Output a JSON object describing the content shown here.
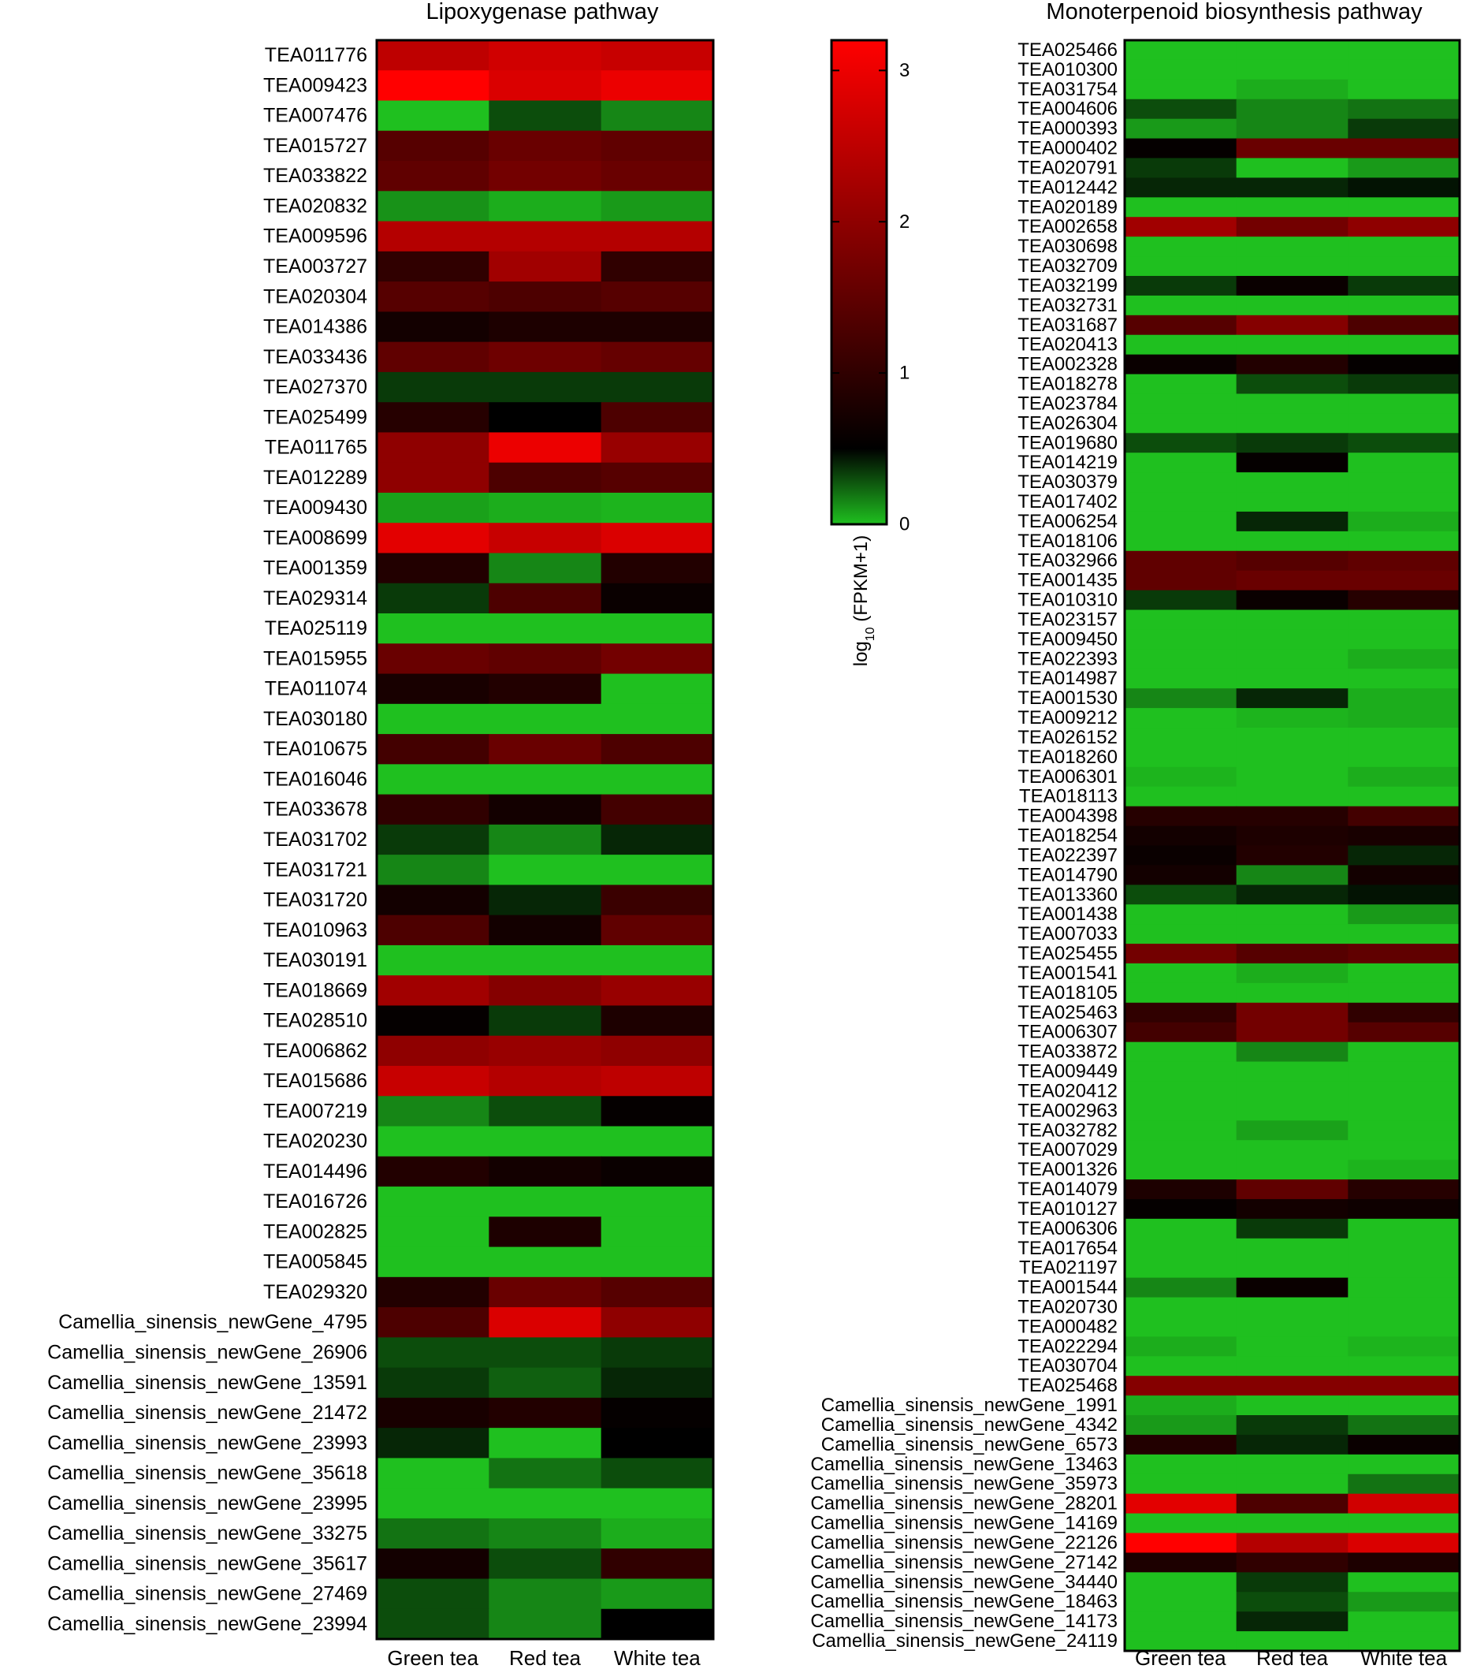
{
  "chart_data": {
    "type": "heatmap",
    "color_scale": {
      "label_main": "log",
      "label_sub": "10",
      "label_rest": " (FPKM+1)",
      "range": [
        0,
        3.2
      ],
      "ticks": [
        0,
        1,
        2,
        3
      ],
      "stops": [
        {
          "v": 0.0,
          "color": "#1fc01f"
        },
        {
          "v": 0.5,
          "color": "#000000"
        },
        {
          "v": 1.5,
          "color": "#600000"
        },
        {
          "v": 3.2,
          "color": "#ff0000"
        }
      ]
    },
    "panels": [
      {
        "title": "Lipoxygenase pathway",
        "columns": [
          "Green tea",
          "Red tea",
          "White tea"
        ],
        "rows": [
          "TEA011776",
          "TEA009423",
          "TEA007476",
          "TEA015727",
          "TEA033822",
          "TEA020832",
          "TEA009596",
          "TEA003727",
          "TEA020304",
          "TEA014386",
          "TEA033436",
          "TEA027370",
          "TEA025499",
          "TEA011765",
          "TEA012289",
          "TEA009430",
          "TEA008699",
          "TEA001359",
          "TEA029314",
          "TEA025119",
          "TEA015955",
          "TEA011074",
          "TEA030180",
          "TEA010675",
          "TEA016046",
          "TEA033678",
          "TEA031702",
          "TEA031721",
          "TEA031720",
          "TEA010963",
          "TEA030191",
          "TEA018669",
          "TEA028510",
          "TEA006862",
          "TEA015686",
          "TEA007219",
          "TEA020230",
          "TEA014496",
          "TEA016726",
          "TEA002825",
          "TEA005845",
          "TEA029320",
          "Camellia_sinensis_newGene_4795",
          "Camellia_sinensis_newGene_26906",
          "Camellia_sinensis_newGene_13591",
          "Camellia_sinensis_newGene_21472",
          "Camellia_sinensis_newGene_23993",
          "Camellia_sinensis_newGene_35618",
          "Camellia_sinensis_newGene_23995",
          "Camellia_sinensis_newGene_33275",
          "Camellia_sinensis_newGene_35617",
          "Camellia_sinensis_newGene_27469",
          "Camellia_sinensis_newGene_23994"
        ],
        "values": [
          [
            2.5,
            2.7,
            2.6
          ],
          [
            3.2,
            2.8,
            3.0
          ],
          [
            0.0,
            0.3,
            0.15
          ],
          [
            1.4,
            1.6,
            1.5
          ],
          [
            1.5,
            1.7,
            1.6
          ],
          [
            0.12,
            0.05,
            0.1
          ],
          [
            2.4,
            2.4,
            2.4
          ],
          [
            1.0,
            2.2,
            1.0
          ],
          [
            1.4,
            1.3,
            1.4
          ],
          [
            0.7,
            0.8,
            0.8
          ],
          [
            1.5,
            1.65,
            1.55
          ],
          [
            0.35,
            0.35,
            0.35
          ],
          [
            0.9,
            0.5,
            1.3
          ],
          [
            2.0,
            3.0,
            2.1
          ],
          [
            2.0,
            1.3,
            1.4
          ],
          [
            0.08,
            0.05,
            0.03
          ],
          [
            2.9,
            2.6,
            2.8
          ],
          [
            0.85,
            0.15,
            0.85
          ],
          [
            0.35,
            1.3,
            0.6
          ],
          [
            0.0,
            0.0,
            0.0
          ],
          [
            1.6,
            1.5,
            1.7
          ],
          [
            0.75,
            0.85,
            0.0
          ],
          [
            0.0,
            0.0,
            0.0
          ],
          [
            1.2,
            1.6,
            1.3
          ],
          [
            0.0,
            0.0,
            0.0
          ],
          [
            1.0,
            0.7,
            1.2
          ],
          [
            0.35,
            0.15,
            0.4
          ],
          [
            0.15,
            0.0,
            0.0
          ],
          [
            0.7,
            0.4,
            1.1
          ],
          [
            1.3,
            0.7,
            1.5
          ],
          [
            0.0,
            0.0,
            0.0
          ],
          [
            2.2,
            1.9,
            2.1
          ],
          [
            0.55,
            0.35,
            0.8
          ],
          [
            2.0,
            2.1,
            2.0
          ],
          [
            2.6,
            2.4,
            2.5
          ],
          [
            0.15,
            0.3,
            0.55
          ],
          [
            0.0,
            0.0,
            0.0
          ],
          [
            0.85,
            0.7,
            0.6
          ],
          [
            0.0,
            0.0,
            0.0
          ],
          [
            0.0,
            0.8,
            0.0
          ],
          [
            0.0,
            0.0,
            0.0
          ],
          [
            0.85,
            1.6,
            1.4
          ],
          [
            1.3,
            2.8,
            2.0
          ],
          [
            0.3,
            0.3,
            0.35
          ],
          [
            0.35,
            0.25,
            0.4
          ],
          [
            0.75,
            0.85,
            0.55
          ],
          [
            0.4,
            0.0,
            0.5
          ],
          [
            0.0,
            0.2,
            0.3
          ],
          [
            0.0,
            0.0,
            0.0
          ],
          [
            0.2,
            0.15,
            0.05
          ],
          [
            0.7,
            0.3,
            1.0
          ],
          [
            0.3,
            0.15,
            0.1
          ],
          [
            0.3,
            0.15,
            0.5
          ]
        ]
      },
      {
        "title": "Monoterpenoid biosynthesis pathway",
        "columns": [
          "Green tea",
          "Red tea",
          "White tea"
        ],
        "rows": [
          "TEA025466",
          "TEA010300",
          "TEA031754",
          "TEA004606",
          "TEA000393",
          "TEA000402",
          "TEA020791",
          "TEA012442",
          "TEA020189",
          "TEA002658",
          "TEA030698",
          "TEA032709",
          "TEA032199",
          "TEA032731",
          "TEA031687",
          "TEA020413",
          "TEA002328",
          "TEA018278",
          "TEA023784",
          "TEA026304",
          "TEA019680",
          "TEA014219",
          "TEA030379",
          "TEA017402",
          "TEA006254",
          "TEA018106",
          "TEA032966",
          "TEA001435",
          "TEA010310",
          "TEA023157",
          "TEA009450",
          "TEA022393",
          "TEA014987",
          "TEA001530",
          "TEA009212",
          "TEA026152",
          "TEA018260",
          "TEA006301",
          "TEA018113",
          "TEA004398",
          "TEA018254",
          "TEA022397",
          "TEA014790",
          "TEA013360",
          "TEA001438",
          "TEA007033",
          "TEA025455",
          "TEA001541",
          "TEA018105",
          "TEA025463",
          "TEA006307",
          "TEA033872",
          "TEA009449",
          "TEA020412",
          "TEA002963",
          "TEA032782",
          "TEA007029",
          "TEA001326",
          "TEA014079",
          "TEA010127",
          "TEA006306",
          "TEA017654",
          "TEA021197",
          "TEA001544",
          "TEA020730",
          "TEA000482",
          "TEA022294",
          "TEA030704",
          "TEA025468",
          "Camellia_sinensis_newGene_1991",
          "Camellia_sinensis_newGene_4342",
          "Camellia_sinensis_newGene_6573",
          "Camellia_sinensis_newGene_13463",
          "Camellia_sinensis_newGene_35973",
          "Camellia_sinensis_newGene_28201",
          "Camellia_sinensis_newGene_14169",
          "Camellia_sinensis_newGene_22126",
          "Camellia_sinensis_newGene_27142",
          "Camellia_sinensis_newGene_34440",
          "Camellia_sinensis_newGene_18463",
          "Camellia_sinensis_newGene_14173",
          "Camellia_sinensis_newGene_24119"
        ],
        "values": [
          [
            0.0,
            0.0,
            0.0
          ],
          [
            0.0,
            0.0,
            0.0
          ],
          [
            0.0,
            0.05,
            0.0
          ],
          [
            0.3,
            0.15,
            0.2
          ],
          [
            0.1,
            0.15,
            0.35
          ],
          [
            0.55,
            1.6,
            1.6
          ],
          [
            0.35,
            0.0,
            0.1
          ],
          [
            0.4,
            0.4,
            0.45
          ],
          [
            0.0,
            0.0,
            0.0
          ],
          [
            2.2,
            1.7,
            2.0
          ],
          [
            0.0,
            0.0,
            0.0
          ],
          [
            0.0,
            0.0,
            0.0
          ],
          [
            0.35,
            0.6,
            0.35
          ],
          [
            0.0,
            0.0,
            0.0
          ],
          [
            1.4,
            1.9,
            1.3
          ],
          [
            0.0,
            0.0,
            0.0
          ],
          [
            0.6,
            0.85,
            0.55
          ],
          [
            0.0,
            0.3,
            0.35
          ],
          [
            0.0,
            0.0,
            0.0
          ],
          [
            0.0,
            0.0,
            0.0
          ],
          [
            0.3,
            0.35,
            0.3
          ],
          [
            0.0,
            0.55,
            0.0
          ],
          [
            0.0,
            0.0,
            0.0
          ],
          [
            0.0,
            0.0,
            0.0
          ],
          [
            0.0,
            0.4,
            0.05
          ],
          [
            0.0,
            0.0,
            0.0
          ],
          [
            1.5,
            1.4,
            1.5
          ],
          [
            1.5,
            1.6,
            1.6
          ],
          [
            0.35,
            0.6,
            0.9
          ],
          [
            0.0,
            0.0,
            0.0
          ],
          [
            0.0,
            0.0,
            0.0
          ],
          [
            0.0,
            0.0,
            0.05
          ],
          [
            0.0,
            0.0,
            0.0
          ],
          [
            0.15,
            0.4,
            0.05
          ],
          [
            0.0,
            0.03,
            0.05
          ],
          [
            0.0,
            0.0,
            0.0
          ],
          [
            0.0,
            0.0,
            0.0
          ],
          [
            0.03,
            0.0,
            0.05
          ],
          [
            0.0,
            0.0,
            0.0
          ],
          [
            0.9,
            0.9,
            1.2
          ],
          [
            0.7,
            0.8,
            0.75
          ],
          [
            0.6,
            0.85,
            0.4
          ],
          [
            0.7,
            0.15,
            0.7
          ],
          [
            0.3,
            0.4,
            0.45
          ],
          [
            0.0,
            0.0,
            0.1
          ],
          [
            0.0,
            0.0,
            0.0
          ],
          [
            1.7,
            1.4,
            1.5
          ],
          [
            0.0,
            0.05,
            0.0
          ],
          [
            0.0,
            0.0,
            0.0
          ],
          [
            1.0,
            1.7,
            1.0
          ],
          [
            1.2,
            1.7,
            1.4
          ],
          [
            0.0,
            0.15,
            0.0
          ],
          [
            0.0,
            0.0,
            0.0
          ],
          [
            0.0,
            0.0,
            0.0
          ],
          [
            0.0,
            0.0,
            0.0
          ],
          [
            0.0,
            0.08,
            0.0
          ],
          [
            0.0,
            0.0,
            0.0
          ],
          [
            0.0,
            0.0,
            0.03
          ],
          [
            0.8,
            1.5,
            0.9
          ],
          [
            0.55,
            0.7,
            0.65
          ],
          [
            0.0,
            0.35,
            0.0
          ],
          [
            0.0,
            0.0,
            0.0
          ],
          [
            0.0,
            0.0,
            0.0
          ],
          [
            0.15,
            0.6,
            0.0
          ],
          [
            0.0,
            0.0,
            0.0
          ],
          [
            0.0,
            0.0,
            0.0
          ],
          [
            0.05,
            0.0,
            0.03
          ],
          [
            0.0,
            0.0,
            0.0
          ],
          [
            1.9,
            1.9,
            1.9
          ],
          [
            0.05,
            0.0,
            0.0
          ],
          [
            0.1,
            0.35,
            0.2
          ],
          [
            0.85,
            0.4,
            0.6
          ],
          [
            0.0,
            0.0,
            0.0
          ],
          [
            0.0,
            0.0,
            0.2
          ],
          [
            2.9,
            1.3,
            2.7
          ],
          [
            0.0,
            0.0,
            0.0
          ],
          [
            3.2,
            2.4,
            2.8
          ],
          [
            0.8,
            1.0,
            0.8
          ],
          [
            0.0,
            0.35,
            0.0
          ],
          [
            0.0,
            0.3,
            0.1
          ],
          [
            0.0,
            0.4,
            0.0
          ],
          [
            0.0,
            0.0,
            0.0
          ]
        ]
      }
    ]
  }
}
